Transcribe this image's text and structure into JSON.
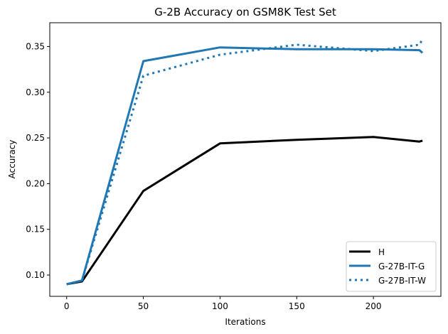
{
  "chart_data": {
    "type": "line",
    "title": "G-2B Accuracy on GSM8K Test Set",
    "xlabel": "Iterations",
    "ylabel": "Accuracy",
    "xlim": [
      -11,
      244
    ],
    "ylim": [
      0.0767,
      0.376
    ],
    "xticks": [
      0,
      50,
      100,
      150,
      200
    ],
    "yticks": [
      0.1,
      0.15,
      0.2,
      0.25,
      0.3,
      0.35
    ],
    "ytick_labels": [
      "0.10",
      "0.15",
      "0.20",
      "0.25",
      "0.30",
      "0.35"
    ],
    "grid": false,
    "legend_position": "lower right",
    "x": [
      0,
      10,
      50,
      100,
      150,
      200,
      230,
      232
    ],
    "series": [
      {
        "name": "H",
        "color": "#000000",
        "style": "solid",
        "width": 3,
        "values": [
          0.09,
          0.093,
          0.192,
          0.244,
          0.248,
          0.251,
          0.246,
          0.247
        ]
      },
      {
        "name": "G-27B-IT-G",
        "color": "#1f77b4",
        "style": "solid",
        "width": 3,
        "values": [
          0.09,
          0.094,
          0.334,
          0.349,
          0.347,
          0.347,
          0.346,
          0.343
        ]
      },
      {
        "name": "G-27B-IT-W",
        "color": "#1f77b4",
        "style": "dotted",
        "width": 3,
        "values": [
          0.09,
          0.094,
          0.318,
          0.341,
          0.352,
          0.345,
          0.352,
          0.358
        ]
      }
    ]
  }
}
